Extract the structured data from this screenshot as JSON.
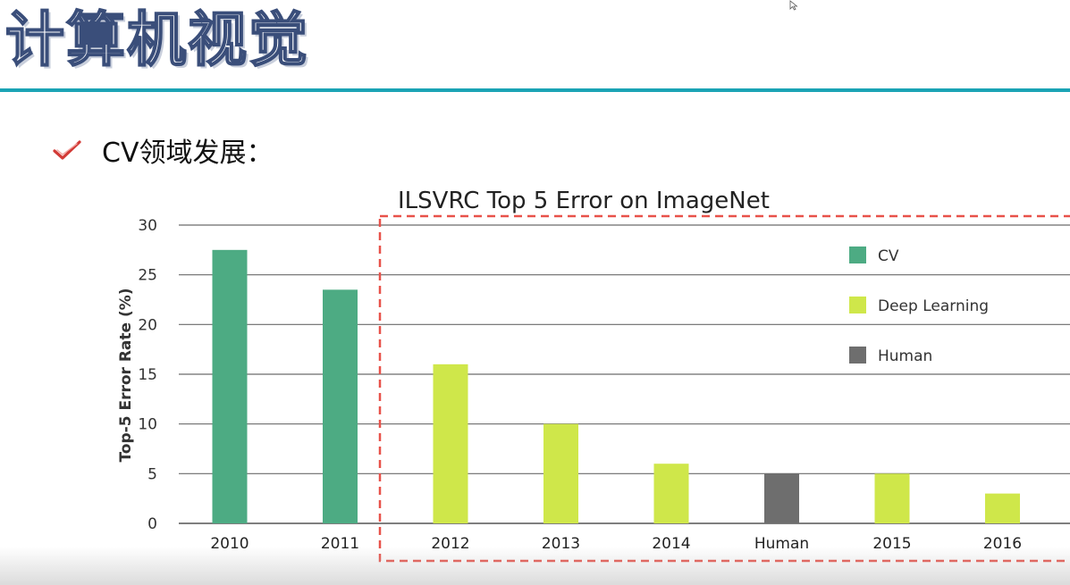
{
  "slide": {
    "title": "计算机视觉",
    "bullet": "CV领域发展："
  },
  "colors": {
    "accent_rule": "#1ba3b5",
    "cv": "#4dab83",
    "deep_learning": "#cfe74a",
    "human": "#6e6e6e",
    "highlight_box": "#e8524a",
    "check": "#d23a36"
  },
  "icons": {
    "bullet": "check-icon",
    "pointer": "cursor-icon"
  },
  "chart_data": {
    "type": "bar",
    "title": "ILSVRC Top 5 Error on ImageNet",
    "xlabel": "",
    "ylabel": "Top-5 Error Rate (%)",
    "ylim": [
      0,
      30
    ],
    "yticks": [
      0,
      5,
      10,
      15,
      20,
      25,
      30
    ],
    "grid": true,
    "legend_position": "top-right",
    "legend": [
      {
        "name": "CV",
        "color": "#4dab83"
      },
      {
        "name": "Deep Learning",
        "color": "#cfe74a"
      },
      {
        "name": "Human",
        "color": "#6e6e6e"
      }
    ],
    "categories": [
      "2010",
      "2011",
      "2012",
      "2013",
      "2014",
      "Human",
      "2015",
      "2016"
    ],
    "values": [
      27.5,
      23.5,
      16.0,
      10.0,
      6.0,
      5.0,
      5.0,
      3.0
    ],
    "groups": [
      "CV",
      "CV",
      "Deep Learning",
      "Deep Learning",
      "Deep Learning",
      "Human",
      "Deep Learning",
      "Deep Learning"
    ]
  }
}
